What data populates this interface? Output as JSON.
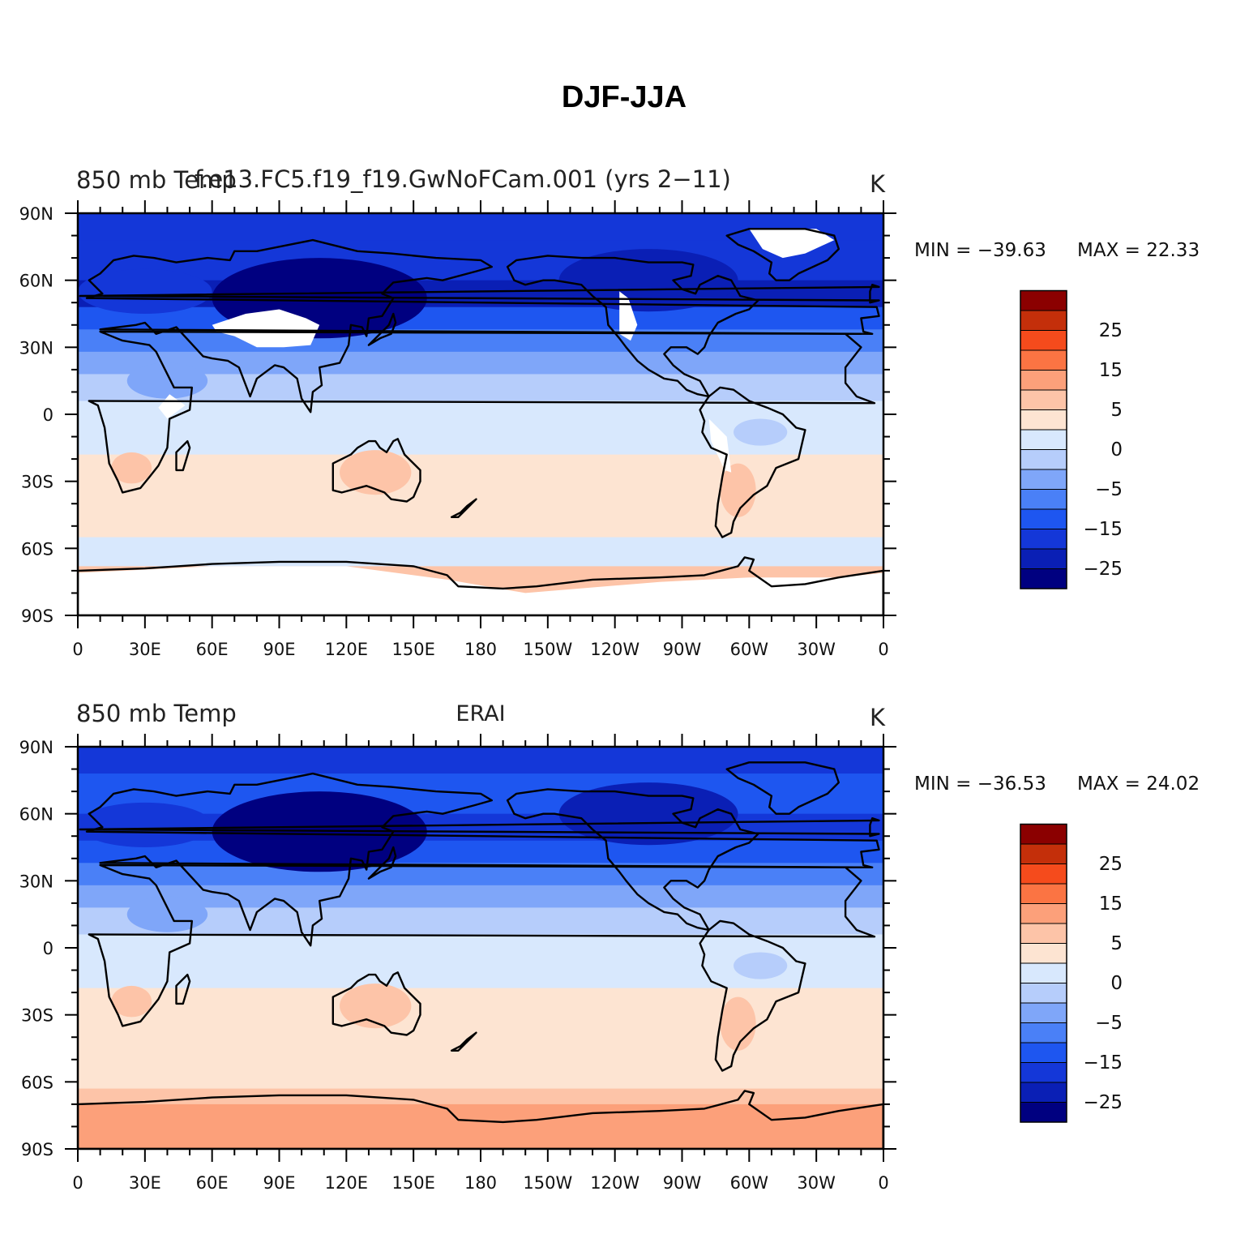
{
  "figure": {
    "title": "DJF-JJA"
  },
  "colors": {
    "levels": [
      -30,
      -25,
      -20,
      -15,
      -10,
      -5,
      0,
      5,
      10,
      15,
      20,
      25,
      30
    ],
    "palette": [
      "#000080",
      "#0a1fb5",
      "#1437d8",
      "#1e56f0",
      "#4a80f7",
      "#7fa6f9",
      "#b6cdfb",
      "#d8e8fd",
      "#fde4d2",
      "#fdc4a8",
      "#fca07a",
      "#fb7443",
      "#f54b1c",
      "#c42f0a",
      "#8b0000"
    ],
    "missing": "#ffffff",
    "coast": "#000000"
  },
  "colorbar": {
    "labels": [
      "25",
      "15",
      "5",
      "0",
      "−5",
      "−15",
      "−25"
    ]
  },
  "axes": {
    "lat_labels": [
      "90N",
      "60N",
      "30N",
      "0",
      "30S",
      "60S",
      "90S"
    ],
    "lon_labels": [
      "0",
      "30E",
      "60E",
      "90E",
      "120E",
      "150E",
      "180",
      "150W",
      "120W",
      "90W",
      "60W",
      "30W",
      "0"
    ]
  },
  "panels": [
    {
      "left_title": "850 mb Temp",
      "center_title": "f.e13.FC5.f19_f19.GwNoFCam.001 (yrs 2−11)",
      "units": "K",
      "min_text": "MIN = −39.63",
      "max_text": "MAX =   22.33",
      "has_missing_mask": true
    },
    {
      "left_title": "850 mb Temp",
      "center_title": "ERAI",
      "units": "K",
      "min_text": "MIN = −36.53",
      "max_text": "MAX =   24.02",
      "has_missing_mask": false
    }
  ]
}
